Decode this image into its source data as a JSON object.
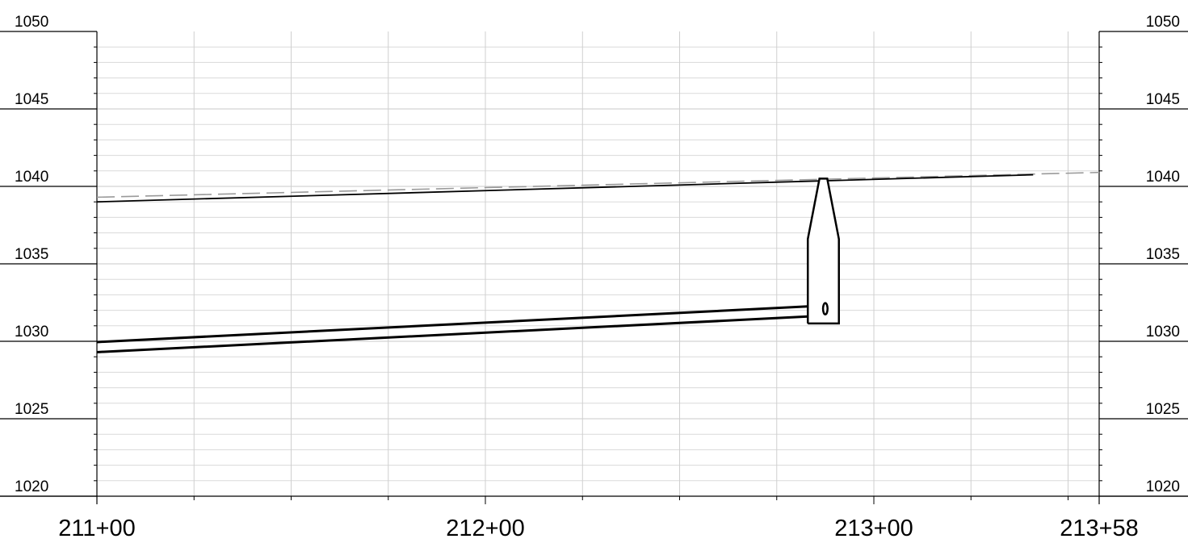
{
  "chart_data": {
    "type": "line",
    "title": "",
    "xlabel": "",
    "ylabel": "",
    "ylim": [
      1020,
      1050
    ],
    "xlim": [
      21100,
      21358
    ],
    "x_unit": "station (ft)",
    "grid": true,
    "elevation_ticks_left": [
      {
        "value": 1050,
        "label": "1050"
      },
      {
        "value": 1045,
        "label": "1045"
      },
      {
        "value": 1040,
        "label": "1040"
      },
      {
        "value": 1035,
        "label": "1035"
      },
      {
        "value": 1030,
        "label": "1030"
      },
      {
        "value": 1025,
        "label": "1025"
      },
      {
        "value": 1020,
        "label": "1020"
      }
    ],
    "elevation_ticks_right": [
      {
        "value": 1050,
        "label": "1050"
      },
      {
        "value": 1045,
        "label": "1045"
      },
      {
        "value": 1040,
        "label": "1040"
      },
      {
        "value": 1035,
        "label": "1035"
      },
      {
        "value": 1030,
        "label": "1030"
      },
      {
        "value": 1025,
        "label": "1025"
      },
      {
        "value": 1020,
        "label": "1020"
      }
    ],
    "station_ticks": [
      {
        "value": 21100,
        "label": "211+00"
      },
      {
        "value": 21200,
        "label": "212+00"
      },
      {
        "value": 21300,
        "label": "213+00"
      },
      {
        "value": 21358,
        "label": "213+58"
      }
    ],
    "series": [
      {
        "style": "dashed-gray",
        "x": [
          21100,
          21358
        ],
        "y": [
          1039.3,
          1040.9
        ]
      },
      {
        "style": "solid-thin",
        "x": [
          21100,
          21341
        ],
        "y": [
          1039.0,
          1040.75
        ]
      },
      {
        "style": "solid-thick",
        "x": [
          21100,
          21283
        ],
        "y": [
          1029.95,
          1032.25
        ]
      },
      {
        "style": "solid-thick",
        "x": [
          21100,
          21283
        ],
        "y": [
          1029.3,
          1031.6
        ]
      }
    ],
    "structure": {
      "shape": "manhole",
      "outline": [
        [
          21283,
          1031.15
        ],
        [
          21283,
          1036.6
        ],
        [
          21286,
          1040.5
        ],
        [
          21288,
          1040.5
        ],
        [
          21291,
          1036.6
        ],
        [
          21291,
          1031.15
        ]
      ],
      "pipe_outlet": {
        "x": 21287.5,
        "y": 1032.1
      }
    }
  }
}
